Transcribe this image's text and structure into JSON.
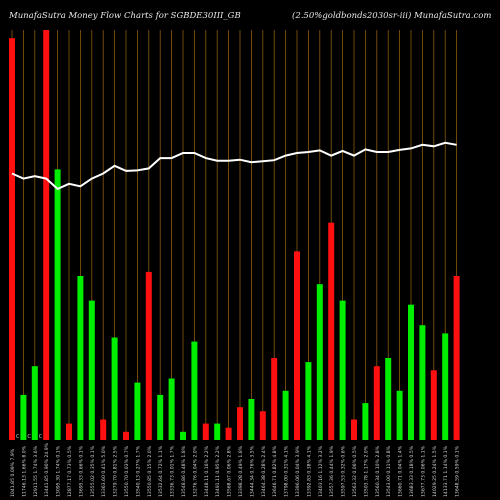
{
  "header": {
    "title_left": "MunafaSutra  Money Flow  Charts for SGBDE30III_GB",
    "title_right": "(2.50%goldbonds2030sr-iii) MunafaSutra.com"
  },
  "colors": {
    "background": "#000000",
    "gridline": "#8a5a10",
    "up": "#00ee00",
    "down": "#ff1010",
    "line": "#ffffff"
  },
  "chart_data": {
    "type": "bar",
    "title": "MunafaSutra  Money Flow  Charts for SGBDE30III_GB",
    "subtitle": "(2.50%goldbonds2030sr-iii) MunafaSutra.com",
    "grid": true,
    "categories": [
      "1041.85 0.09% 7.9%",
      "11746.13 1.66% 8.0%",
      "12911.55 1.74% 3.6%",
      "13441.85 0.90% 24.9%",
      "13095.30 1.74% 0.1%",
      "12877.17 0.73% 0.5%",
      "13695.33 0.66% 0.1%",
      "13555.02 0.35% 0.1%",
      "13363.60 0.41% 5.0%",
      "13279.70 0.81% 2.5%",
      "13550.70 0.03% 0.7%",
      "13540.13 0.27% 1.7%",
      "13550.85 0.15% 2.0%",
      "13532.64 0.72% 1.1%",
      "13336.73 0.01% 1.7%",
      "13548.86 0.48% 1.8%",
      "13276.76 0.04% 2.0%",
      "13448.11 0.16% 2.2%",
      "13491.11 0.95% 2.2%",
      "13568.67 0.06% 2.8%",
      "13398.28 0.49% 1.8%",
      "13444.34 0.76% 3.5%",
      "13464.38 0.28% 2.4%",
      "13646.71 0.82% 4.8%",
      "13798.00 0.31% 4.1%",
      "13396.06 0.04% 3.9%",
      "13392.83 0.38% 4.1%",
      "13403.16 1.12% 3.2%",
      "13557.36 0.44% 1.9%",
      "13597.53 0.32% 0.6%",
      "13563.32 0.06% 0.5%",
      "13503.78 1.17% 2.0%",
      "13560.34 0.10% 2.8%",
      "13543.00 0.11% 0.8%",
      "13660.71 0.04% 1.4%",
      "13683.33 0.18% 0.5%",
      "13677.73 0.06% 1.1%",
      "14029.25 0.24% 1.5%",
      "14133.71 1.14% 0.1%",
      "13648.59 0.59% 0.1%"
    ],
    "bar_colors": [
      "red",
      "green",
      "green",
      "red",
      "green",
      "red",
      "green",
      "green",
      "red",
      "green",
      "red",
      "green",
      "red",
      "green",
      "green",
      "green",
      "green",
      "red",
      "green",
      "red",
      "red",
      "green",
      "red",
      "red",
      "green",
      "red",
      "green",
      "green",
      "red",
      "green",
      "red",
      "green",
      "red",
      "green",
      "green",
      "green",
      "green",
      "red",
      "green",
      "red"
    ],
    "values": [
      98,
      11,
      18,
      100,
      66,
      4,
      40,
      34,
      5,
      25,
      2,
      14,
      41,
      11,
      15,
      2,
      24,
      4,
      4,
      3,
      8,
      10,
      7,
      20,
      12,
      46,
      19,
      38,
      53,
      34,
      5,
      9,
      18,
      20,
      12,
      33,
      28,
      17,
      26,
      40
    ],
    "ylim": [
      0,
      100
    ],
    "line": {
      "name": "price",
      "values": [
        72,
        71,
        71.5,
        71,
        69,
        70,
        69.5,
        71,
        72,
        73.5,
        72.5,
        72.6,
        73,
        75,
        75,
        76,
        76,
        75,
        74.5,
        74.5,
        74.7,
        74.2,
        74.4,
        74.6,
        75.5,
        76,
        76.2,
        76.5,
        75.5,
        76.4,
        75.5,
        76.7,
        76.2,
        76.2,
        76.6,
        76.9,
        77.6,
        77.3,
        78,
        77.6
      ],
      "ylim": [
        20,
        100
      ]
    },
    "markers": [
      "C",
      "C",
      "C",
      "",
      "",
      "",
      "",
      "",
      "",
      "",
      "",
      "",
      "",
      "",
      "",
      "",
      "",
      "",
      "",
      "",
      "",
      "",
      "",
      "",
      "",
      "",
      "",
      "",
      "",
      "",
      "",
      "",
      "",
      "",
      "",
      "",
      "",
      "",
      "",
      ""
    ]
  }
}
